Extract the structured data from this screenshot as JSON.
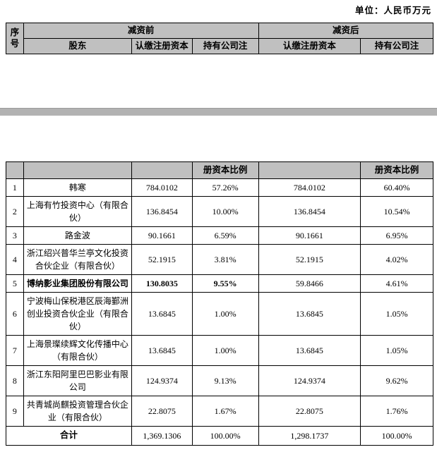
{
  "unit_label": "单位：人民币万元",
  "colors": {
    "header_cell_bg": "#c0c0c0",
    "page_separator_bar": "#b2b2b2",
    "table_border": "#000000",
    "text": "#000000"
  },
  "table": {
    "header": {
      "seq": "序号",
      "before_group": "减资前",
      "after_group": "减资后",
      "shareholder": "股东",
      "subscribed_capital": "认缴注册资本",
      "ratio_truncated_top": "持有公司注",
      "ratio_truncated_bottom": "册资本比例"
    },
    "rows": [
      {
        "no": "1",
        "name": "韩寒",
        "before_capital": "784.0102",
        "before_ratio": "57.26%",
        "after_capital": "784.0102",
        "after_ratio": "60.40%",
        "bold": false
      },
      {
        "no": "2",
        "name": "上海有竹投资中心（有限合伙）",
        "before_capital": "136.8454",
        "before_ratio": "10.00%",
        "after_capital": "136.8454",
        "after_ratio": "10.54%",
        "bold": false
      },
      {
        "no": "3",
        "name": "路金波",
        "before_capital": "90.1661",
        "before_ratio": "6.59%",
        "after_capital": "90.1661",
        "after_ratio": "6.95%",
        "bold": false
      },
      {
        "no": "4",
        "name": "浙江绍兴普华兰亭文化投资合伙企业（有限合伙）",
        "before_capital": "52.1915",
        "before_ratio": "3.81%",
        "after_capital": "52.1915",
        "after_ratio": "4.02%",
        "bold": false
      },
      {
        "no": "5",
        "name": "博纳影业集团股份有限公司",
        "before_capital": "130.8035",
        "before_ratio": "9.55%",
        "after_capital": "59.8466",
        "after_ratio": "4.61%",
        "bold": true
      },
      {
        "no": "6",
        "name": "宁波梅山保税港区辰海鄞洲创业投资合伙企业（有限合伙）",
        "before_capital": "13.6845",
        "before_ratio": "1.00%",
        "after_capital": "13.6845",
        "after_ratio": "1.05%",
        "bold": false
      },
      {
        "no": "7",
        "name": "上海景璨续辉文化传播中心（有限合伙）",
        "before_capital": "13.6845",
        "before_ratio": "1.00%",
        "after_capital": "13.6845",
        "after_ratio": "1.05%",
        "bold": false
      },
      {
        "no": "8",
        "name": "浙江东阳阿里巴巴影业有限公司",
        "before_capital": "124.9374",
        "before_ratio": "9.13%",
        "after_capital": "124.9374",
        "after_ratio": "9.62%",
        "bold": false
      },
      {
        "no": "9",
        "name": "共青城尚麒投资管理合伙企业（有限合伙）",
        "before_capital": "22.8075",
        "before_ratio": "1.67%",
        "after_capital": "22.8075",
        "after_ratio": "1.76%",
        "bold": false
      }
    ],
    "total": {
      "label": "合计",
      "before_capital": "1,369.1306",
      "before_ratio": "100.00%",
      "after_capital": "1,298.1737",
      "after_ratio": "100.00%"
    }
  }
}
